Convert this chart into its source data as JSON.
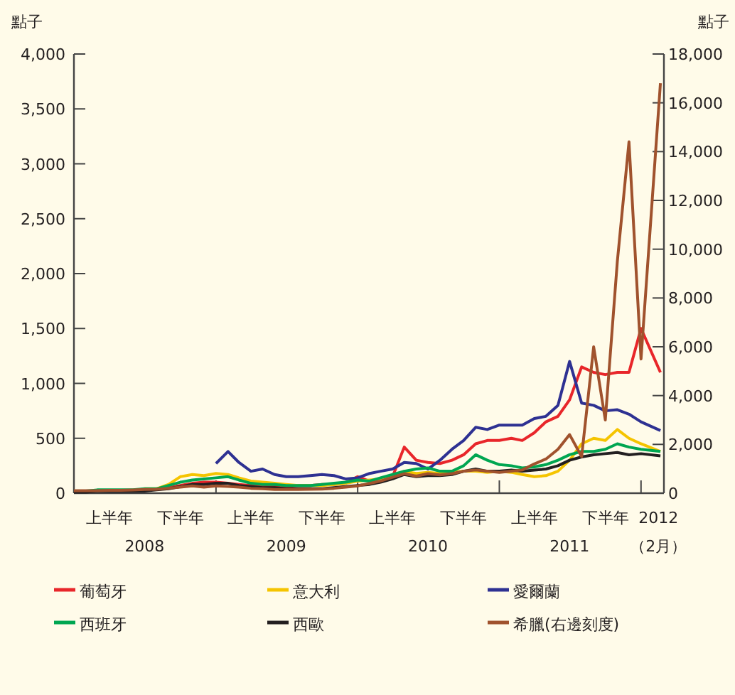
{
  "chart_data": {
    "type": "line",
    "ylabel": "點子",
    "y2label": "點子",
    "x": [
      "2008-01-01",
      "2008-02-01",
      "2008-03-01",
      "2008-04-01",
      "2008-05-01",
      "2008-06-01",
      "2008-07-01",
      "2008-08-01",
      "2008-09-01",
      "2008-10-01",
      "2008-11-01",
      "2008-12-01",
      "2009-01-01",
      "2009-02-01",
      "2009-03-01",
      "2009-04-01",
      "2009-05-01",
      "2009-06-01",
      "2009-07-01",
      "2009-08-01",
      "2009-09-01",
      "2009-10-01",
      "2009-11-01",
      "2009-12-01",
      "2010-01-01",
      "2010-02-01",
      "2010-03-01",
      "2010-04-01",
      "2010-05-01",
      "2010-06-01",
      "2010-07-01",
      "2010-08-01",
      "2010-09-01",
      "2010-10-01",
      "2010-11-01",
      "2010-12-01",
      "2011-01-01",
      "2011-02-01",
      "2011-03-01",
      "2011-04-01",
      "2011-05-01",
      "2011-06-01",
      "2011-07-01",
      "2011-08-01",
      "2011-09-01",
      "2011-10-01",
      "2011-11-01",
      "2011-12-01",
      "2012-01-01",
      "2012-02-20"
    ],
    "series": [
      {
        "name": "葡萄牙",
        "color": "#e8262a",
        "values": [
          null,
          null,
          null,
          null,
          null,
          null,
          null,
          40,
          50,
          70,
          90,
          100,
          100,
          90,
          80,
          70,
          60,
          60,
          60,
          70,
          70,
          80,
          80,
          90,
          150,
          110,
          130,
          150,
          420,
          300,
          280,
          270,
          300,
          350,
          450,
          480,
          480,
          500,
          480,
          550,
          650,
          700,
          850,
          1150,
          1100,
          1080,
          1100,
          1100,
          1500,
          1100
        ]
      },
      {
        "name": "意大利",
        "color": "#f5c400",
        "values": [
          null,
          null,
          null,
          null,
          null,
          null,
          40,
          40,
          80,
          150,
          170,
          160,
          180,
          170,
          140,
          110,
          100,
          90,
          80,
          70,
          70,
          70,
          80,
          90,
          110,
          120,
          130,
          150,
          200,
          180,
          190,
          180,
          190,
          200,
          200,
          190,
          200,
          190,
          170,
          150,
          160,
          200,
          300,
          450,
          500,
          480,
          580,
          500,
          450,
          380
        ]
      },
      {
        "name": "愛爾蘭",
        "color": "#2e3192",
        "values": [
          null,
          null,
          null,
          null,
          null,
          null,
          null,
          null,
          null,
          null,
          null,
          null,
          270,
          380,
          280,
          200,
          220,
          170,
          150,
          150,
          160,
          170,
          160,
          130,
          140,
          180,
          200,
          220,
          280,
          270,
          220,
          300,
          400,
          480,
          600,
          580,
          620,
          620,
          620,
          680,
          700,
          800,
          1200,
          820,
          800,
          750,
          760,
          720,
          650,
          570
        ]
      },
      {
        "name": "西班牙",
        "color": "#00a651",
        "values": [
          20,
          20,
          30,
          30,
          30,
          30,
          40,
          40,
          70,
          100,
          120,
          130,
          140,
          150,
          120,
          90,
          80,
          80,
          70,
          70,
          70,
          80,
          90,
          100,
          120,
          110,
          140,
          170,
          200,
          220,
          230,
          200,
          200,
          250,
          350,
          300,
          260,
          250,
          230,
          240,
          260,
          300,
          350,
          380,
          380,
          400,
          450,
          420,
          400,
          380
        ]
      },
      {
        "name": "西歐",
        "color": "#231f20",
        "values": [
          10,
          10,
          20,
          20,
          20,
          20,
          20,
          30,
          40,
          60,
          80,
          80,
          90,
          90,
          70,
          60,
          50,
          50,
          40,
          40,
          40,
          40,
          50,
          60,
          70,
          80,
          100,
          130,
          170,
          150,
          160,
          160,
          170,
          200,
          220,
          200,
          200,
          210,
          200,
          210,
          220,
          250,
          300,
          330,
          350,
          360,
          370,
          350,
          360,
          340
        ]
      },
      {
        "name": "希臘(右邊刻度)",
        "color": "#a0522d",
        "axis": "y2",
        "values": [
          100,
          100,
          100,
          120,
          120,
          130,
          150,
          160,
          200,
          250,
          300,
          250,
          300,
          280,
          250,
          200,
          180,
          150,
          150,
          150,
          160,
          170,
          200,
          250,
          300,
          400,
          500,
          650,
          800,
          700,
          800,
          750,
          800,
          900,
          950,
          900,
          850,
          900,
          950,
          1200,
          1400,
          1800,
          2400,
          1500,
          6000,
          3000,
          9500,
          14400,
          5500,
          16800
        ]
      }
    ],
    "xlim": [
      "2008-01-01",
      "2012-02-29"
    ],
    "xticks": [
      {
        "value": "2008-07-01",
        "label": "2008"
      },
      {
        "value": "2009-01-01",
        "label": null
      },
      {
        "value": "2009-07-01",
        "label": "2009"
      },
      {
        "value": "2010-01-01",
        "label": null
      },
      {
        "value": "2010-07-01",
        "label": "2010"
      },
      {
        "value": "2011-01-01",
        "label": null
      },
      {
        "value": "2011-07-01",
        "label": "2011"
      },
      {
        "value": "2012-01-01",
        "label": null
      },
      {
        "value": "2012-02-15",
        "label": "2012\n（2月）"
      }
    ],
    "annotations": [
      "上半年",
      "下半年",
      "上半年",
      "下半年",
      "上半年",
      "下半年",
      "上半年",
      "下半年"
    ],
    "ylim": [
      0,
      4000
    ],
    "yticks": [
      0,
      {
        "value": 500,
        "label": "500"
      },
      {
        "value": 1000,
        "label": "1,000"
      },
      {
        "value": 1500,
        "label": "1,500"
      },
      {
        "value": 2000,
        "label": "2,000"
      },
      {
        "value": 2500,
        "label": "2,500"
      },
      {
        "value": 3000,
        "label": "3,000"
      },
      {
        "value": 3500,
        "label": "3,500"
      },
      {
        "value": 4000,
        "label": "4,000"
      }
    ],
    "y2lim": [
      0,
      18000
    ],
    "y2ticks": [
      0,
      {
        "value": 2000,
        "label": "2,000"
      },
      {
        "value": 4000,
        "label": "4,000"
      },
      {
        "value": 6000,
        "label": "6,000"
      },
      {
        "value": 8000,
        "label": "8,000"
      },
      {
        "value": 10000,
        "label": "10,000"
      },
      {
        "value": 12000,
        "label": "12,000"
      },
      {
        "value": 14000,
        "label": "14,000"
      },
      {
        "value": 16000,
        "label": "16,000"
      },
      {
        "value": 18000,
        "label": "18,000"
      }
    ],
    "legend": "bottom",
    "grid": false,
    "marker": "none",
    "line_style": "solid"
  }
}
